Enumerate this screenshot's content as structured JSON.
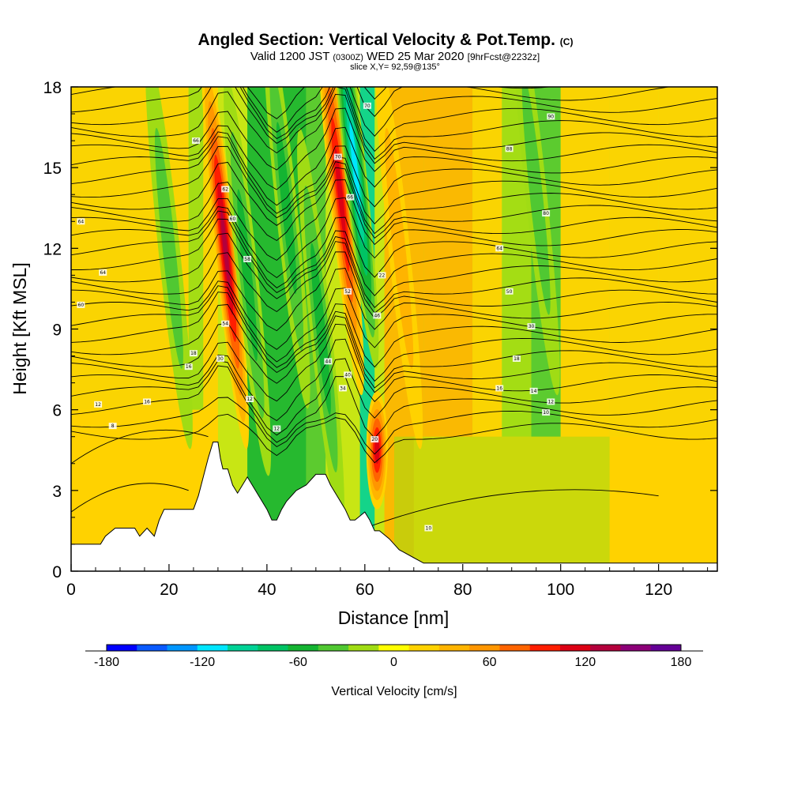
{
  "chart_data": {
    "type": "heatmap",
    "title": "Angled Section: Vertical Velocity & Pot.Temp.",
    "title_suffix": "(C)",
    "subtitle_a": "Valid 1200 JST",
    "subtitle_b": "(0300Z)",
    "subtitle_c": "WED 25 Mar 2020",
    "subtitle_d": "[9hrFcst@2232z]",
    "slice_label": "slice X,Y= 92,59@135°",
    "xlabel": "Distance [nm]",
    "ylabel": "Height [Kft MSL]",
    "xlim": [
      0,
      132
    ],
    "ylim": [
      0,
      18
    ],
    "x_ticks": [
      "0",
      "20",
      "40",
      "60",
      "80",
      "100",
      "120"
    ],
    "y_ticks": [
      "0",
      "3",
      "6",
      "9",
      "12",
      "15",
      "18"
    ],
    "colorbar": {
      "label": "Vertical Velocity [cm/s]",
      "range": [
        -180,
        180
      ],
      "tick_labels": [
        "-180",
        "-120",
        "-60",
        "0",
        "60",
        "120",
        "180"
      ],
      "colors": [
        "#0000ff",
        "#0a5aff",
        "#0096ff",
        "#00e6ff",
        "#00d296",
        "#00c364",
        "#14b432",
        "#50c832",
        "#a0dc14",
        "#ffff00",
        "#ffd200",
        "#ffb400",
        "#ff9600",
        "#ff6400",
        "#ff1e00",
        "#dc0014",
        "#b4003c",
        "#8c0078",
        "#640096"
      ]
    },
    "velocity_features": [
      {
        "type": "updraft",
        "x": 31.5,
        "z": 12.0,
        "value": 150
      },
      {
        "type": "downdraft",
        "x": 36,
        "z": 11.0,
        "value": -70
      },
      {
        "type": "downdraft",
        "x": 44,
        "z": 13.5,
        "value": -60
      },
      {
        "type": "downdraft",
        "x": 51,
        "z": 9.0,
        "value": -70
      },
      {
        "type": "updraft",
        "x": 55,
        "z": 14.0,
        "value": 130
      },
      {
        "type": "downdraft",
        "x": 58,
        "z": 15.0,
        "value": -120
      },
      {
        "type": "updraft",
        "x": 62.5,
        "z": 4.5,
        "value": 120
      },
      {
        "type": "updraft",
        "x": 67,
        "z": 12.0,
        "value": 50
      },
      {
        "type": "downdraft",
        "x": 20,
        "z": 12.0,
        "value": -50
      },
      {
        "type": "downdraft",
        "x": 95,
        "z": 14.0,
        "value": -45
      }
    ],
    "terrain": [
      [
        0,
        1
      ],
      [
        6,
        1
      ],
      [
        7,
        1.3
      ],
      [
        9,
        1.6
      ],
      [
        13,
        1.6
      ],
      [
        14,
        1.3
      ],
      [
        15.5,
        1.6
      ],
      [
        17,
        1.3
      ],
      [
        18,
        1.9
      ],
      [
        19,
        2.3
      ],
      [
        25,
        2.3
      ],
      [
        26,
        2.8
      ],
      [
        27,
        3.5
      ],
      [
        28,
        4.2
      ],
      [
        29,
        4.8
      ],
      [
        30,
        4.8
      ],
      [
        30.5,
        4.2
      ],
      [
        31,
        3.8
      ],
      [
        32,
        3.8
      ],
      [
        33,
        3.2
      ],
      [
        34,
        2.9
      ],
      [
        35,
        3.2
      ],
      [
        36,
        3.5
      ],
      [
        37,
        3.2
      ],
      [
        38,
        2.9
      ],
      [
        39,
        2.6
      ],
      [
        40,
        2.3
      ],
      [
        41,
        1.9
      ],
      [
        42,
        1.9
      ],
      [
        43,
        2.3
      ],
      [
        44,
        2.6
      ],
      [
        46,
        3.0
      ],
      [
        48,
        3.2
      ],
      [
        50,
        3.6
      ],
      [
        52,
        3.6
      ],
      [
        53,
        3.2
      ],
      [
        54,
        2.9
      ],
      [
        55,
        2.6
      ],
      [
        56,
        2.3
      ],
      [
        57,
        1.9
      ],
      [
        58,
        1.9
      ],
      [
        60,
        2.2
      ],
      [
        61,
        1.9
      ],
      [
        62,
        1.5
      ],
      [
        63,
        1.5
      ],
      [
        65,
        1.2
      ],
      [
        66,
        1.0
      ],
      [
        67,
        0.8
      ],
      [
        70,
        0.5
      ],
      [
        72,
        0.3
      ],
      [
        132,
        0.3
      ],
      [
        132,
        0
      ],
      [
        0,
        0
      ]
    ],
    "contour_labels": [
      {
        "text": "66",
        "x": 25.5,
        "z": 16.0
      },
      {
        "text": "64",
        "x": 2,
        "z": 13.0
      },
      {
        "text": "64",
        "x": 6.5,
        "z": 11.1
      },
      {
        "text": "60",
        "x": 2,
        "z": 9.9
      },
      {
        "text": "70",
        "x": 60.5,
        "z": 17.3
      },
      {
        "text": "70",
        "x": 54.5,
        "z": 15.4
      },
      {
        "text": "66",
        "x": 57,
        "z": 13.9
      },
      {
        "text": "62",
        "x": 31.5,
        "z": 14.2
      },
      {
        "text": "60",
        "x": 33,
        "z": 13.1
      },
      {
        "text": "58",
        "x": 36,
        "z": 11.6
      },
      {
        "text": "54",
        "x": 31.5,
        "z": 9.2
      },
      {
        "text": "30",
        "x": 30.5,
        "z": 7.9
      },
      {
        "text": "22",
        "x": 63.5,
        "z": 11.0
      },
      {
        "text": "52",
        "x": 56.5,
        "z": 10.4
      },
      {
        "text": "46",
        "x": 62.5,
        "z": 9.5
      },
      {
        "text": "44",
        "x": 52.5,
        "z": 7.8
      },
      {
        "text": "40",
        "x": 56.5,
        "z": 7.3
      },
      {
        "text": "34",
        "x": 55.5,
        "z": 6.8
      },
      {
        "text": "18",
        "x": 25,
        "z": 8.1
      },
      {
        "text": "16",
        "x": 24,
        "z": 7.6
      },
      {
        "text": "16",
        "x": 15.5,
        "z": 6.3
      },
      {
        "text": "12",
        "x": 5.5,
        "z": 6.2
      },
      {
        "text": "8",
        "x": 8.5,
        "z": 5.4
      },
      {
        "text": "12",
        "x": 36.5,
        "z": 6.4
      },
      {
        "text": "12",
        "x": 42,
        "z": 5.3
      },
      {
        "text": "20",
        "x": 62,
        "z": 4.9
      },
      {
        "text": "90",
        "x": 98,
        "z": 16.9
      },
      {
        "text": "88",
        "x": 89.5,
        "z": 15.7
      },
      {
        "text": "80",
        "x": 97,
        "z": 13.3
      },
      {
        "text": "64",
        "x": 87.5,
        "z": 12.0
      },
      {
        "text": "50",
        "x": 89.5,
        "z": 10.4
      },
      {
        "text": "30",
        "x": 94,
        "z": 9.1
      },
      {
        "text": "18",
        "x": 91,
        "z": 7.9
      },
      {
        "text": "16",
        "x": 87.5,
        "z": 6.8
      },
      {
        "text": "14",
        "x": 94.5,
        "z": 6.7
      },
      {
        "text": "12",
        "x": 98,
        "z": 6.3
      },
      {
        "text": "10",
        "x": 97,
        "z": 5.9
      },
      {
        "text": "10",
        "x": 73,
        "z": 1.6
      }
    ]
  }
}
